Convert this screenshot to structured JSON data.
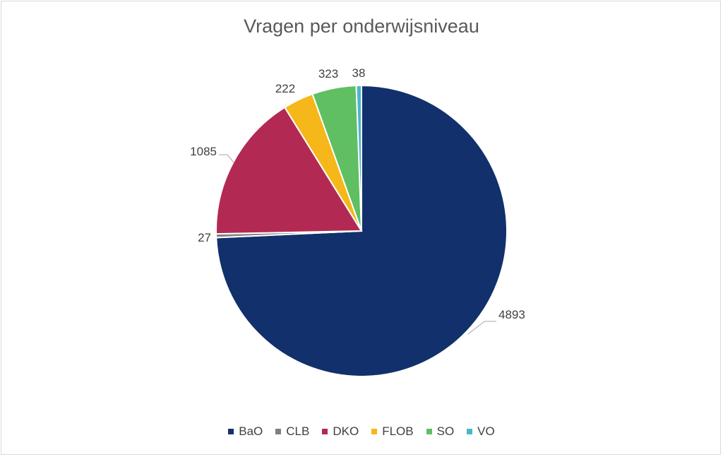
{
  "chart_data": {
    "type": "pie",
    "title": "Vragen per onderwijsniveau",
    "categories": [
      "BaO",
      "CLB",
      "DKO",
      "FLOB",
      "SO",
      "VO"
    ],
    "values": [
      4893,
      27,
      1085,
      222,
      323,
      38
    ],
    "colors": [
      "#12306b",
      "#7f7f7f",
      "#b22a53",
      "#f5b719",
      "#5fbf62",
      "#4ab6cc"
    ],
    "data_labels": [
      "4893",
      "27",
      "1085",
      "222",
      "323",
      "38"
    ],
    "legend_position": "bottom",
    "start_angle": "12 o'clock, clockwise"
  }
}
